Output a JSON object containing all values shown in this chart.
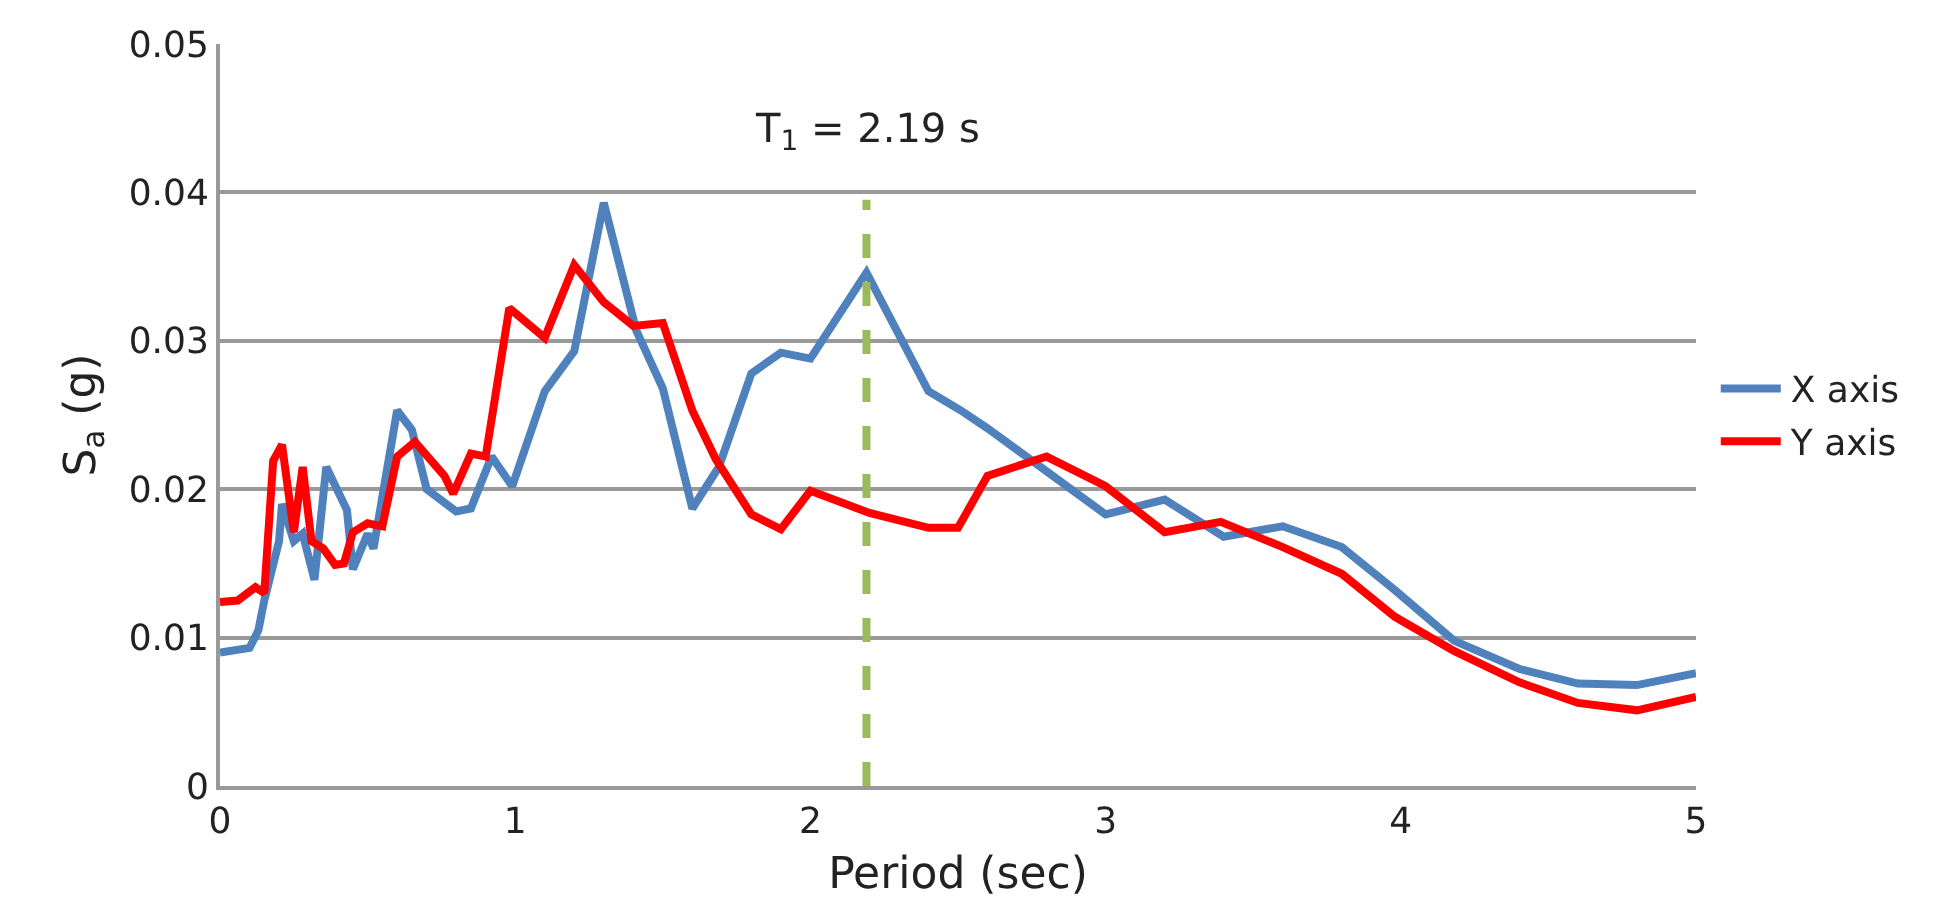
{
  "chart_data": {
    "type": "line",
    "xlabel": "Period (sec)",
    "ylabel": "S$_{a}$ (g)",
    "xlim": [
      0,
      5
    ],
    "xticks": [
      0,
      1,
      2,
      3,
      4,
      5
    ],
    "ylim": [
      0,
      0.05
    ],
    "yticks": [
      0,
      0.01,
      0.02,
      0.03,
      0.04,
      0.05
    ],
    "grid": "y",
    "legend": "right",
    "marker": "none",
    "line_style": "solid",
    "series": [
      {
        "name": "X axis",
        "color": "#4f81bd",
        "x": [
          0,
          0.1,
          0.13,
          0.15,
          0.2,
          0.21,
          0.25,
          0.28,
          0.32,
          0.36,
          0.43,
          0.45,
          0.5,
          0.52,
          0.6,
          0.65,
          0.7,
          0.8,
          0.85,
          0.92,
          0.99,
          1.1,
          1.2,
          1.3,
          1.41,
          1.5,
          1.6,
          1.69,
          1.8,
          1.9,
          2.0,
          2.19,
          2.4,
          2.51,
          2.6,
          2.78,
          3.0,
          3.2,
          3.4,
          3.6,
          3.8,
          3.98,
          4.18,
          4.4,
          4.6,
          4.8,
          5.0
        ],
        "values": [
          0.009,
          0.0093,
          0.0105,
          0.0125,
          0.0165,
          0.019,
          0.0165,
          0.017,
          0.0139,
          0.0215,
          0.0186,
          0.0146,
          0.017,
          0.016,
          0.0253,
          0.024,
          0.02,
          0.0185,
          0.0187,
          0.0222,
          0.0202,
          0.0266,
          0.0293,
          0.0393,
          0.0307,
          0.0268,
          0.0187,
          0.0215,
          0.0278,
          0.0292,
          0.0288,
          0.0346,
          0.0266,
          0.0253,
          0.0241,
          0.0215,
          0.0183,
          0.0193,
          0.0168,
          0.0175,
          0.0161,
          0.0132,
          0.0098,
          0.0079,
          0.0069,
          0.0068,
          0.0076
        ]
      },
      {
        "name": "Y axis",
        "color": "#ff0000",
        "x": [
          0,
          0.06,
          0.12,
          0.15,
          0.18,
          0.21,
          0.25,
          0.28,
          0.31,
          0.35,
          0.39,
          0.42,
          0.45,
          0.5,
          0.55,
          0.6,
          0.66,
          0.76,
          0.79,
          0.85,
          0.9,
          0.98,
          1.1,
          1.2,
          1.3,
          1.4,
          1.5,
          1.6,
          1.68,
          1.8,
          1.9,
          2.0,
          2.2,
          2.4,
          2.5,
          2.6,
          2.8,
          3.0,
          3.2,
          3.39,
          3.6,
          3.8,
          3.98,
          4.18,
          4.4,
          4.6,
          4.8,
          5.0
        ],
        "values": [
          0.0124,
          0.0125,
          0.0134,
          0.013,
          0.0219,
          0.023,
          0.0171,
          0.0215,
          0.0165,
          0.016,
          0.0149,
          0.015,
          0.0171,
          0.0177,
          0.0175,
          0.0222,
          0.0232,
          0.0209,
          0.0197,
          0.0224,
          0.0222,
          0.0322,
          0.0302,
          0.0351,
          0.0326,
          0.031,
          0.0312,
          0.0253,
          0.022,
          0.0183,
          0.0173,
          0.0199,
          0.0184,
          0.0174,
          0.0174,
          0.0209,
          0.0222,
          0.0202,
          0.0171,
          0.0178,
          0.0161,
          0.0143,
          0.0114,
          0.0091,
          0.007,
          0.0056,
          0.0051,
          0.006
        ]
      }
    ],
    "ref_lines": [
      {
        "axis": "x",
        "value": 2.19,
        "label": "T$_{1}$ = 2.19 s",
        "color": "#9bbb59",
        "line_style": "dashed"
      }
    ]
  }
}
